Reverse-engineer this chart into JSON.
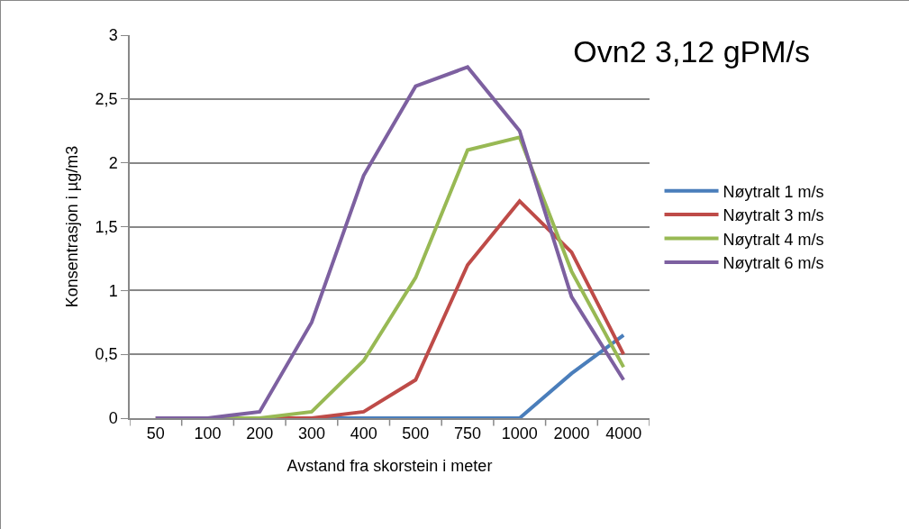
{
  "chart_data": {
    "type": "line",
    "title": "Ovn2 3,12 gPM/s",
    "xlabel": "Avstand fra skorstein i meter",
    "ylabel": "Konsentrasjon i µg/m3",
    "categories": [
      "50",
      "100",
      "200",
      "300",
      "400",
      "500",
      "750",
      "1000",
      "2000",
      "4000"
    ],
    "series": [
      {
        "name": "Nøytralt 1 m/s",
        "color": "#4a7ebb",
        "values": [
          0,
          0,
          0,
          0,
          0,
          0,
          0,
          0,
          0.35,
          0.65
        ]
      },
      {
        "name": "Nøytralt 3 m/s",
        "color": "#be4b48",
        "values": [
          0,
          0,
          0,
          0,
          0.05,
          0.3,
          1.2,
          1.7,
          1.3,
          0.5
        ]
      },
      {
        "name": "Nøytralt 4 m/s",
        "color": "#98b954",
        "values": [
          0,
          0,
          0,
          0.05,
          0.45,
          1.1,
          2.1,
          2.2,
          1.15,
          0.4
        ]
      },
      {
        "name": "Nøytralt 6 m/s",
        "color": "#7d60a0",
        "values": [
          0,
          0,
          0.05,
          0.75,
          1.9,
          2.6,
          2.75,
          2.25,
          0.95,
          0.3
        ]
      }
    ],
    "ylim": [
      0,
      3
    ],
    "yticks": [
      0,
      {
        "value": 0.5,
        "label": "0,5"
      },
      1,
      {
        "value": 1.5,
        "label": "1,5"
      },
      2,
      {
        "value": 2.5,
        "label": "2,5"
      },
      3
    ],
    "grid": "y",
    "legend": "right",
    "marker": "none",
    "line_style": "solid"
  }
}
